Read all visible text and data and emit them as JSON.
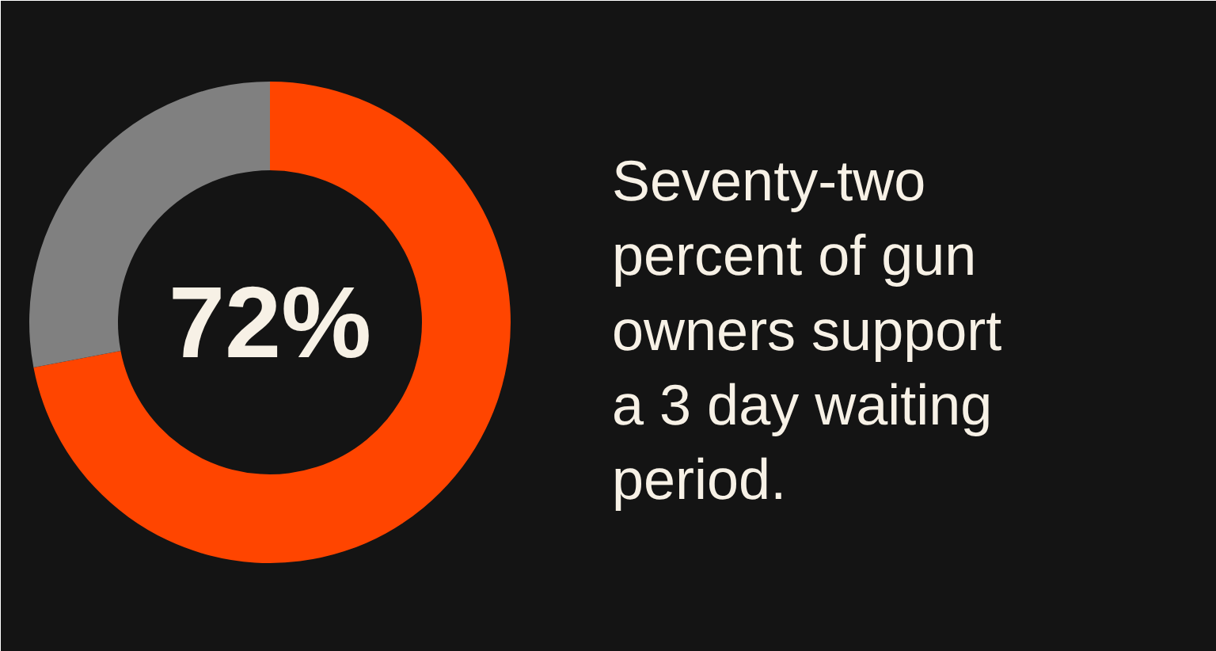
{
  "chart_data": {
    "type": "donut",
    "categories": [
      null,
      null
    ],
    "values": [
      72,
      28
    ],
    "colors": [
      "#ff4500",
      "#808080"
    ],
    "value_labels": [
      "72%",
      null
    ],
    "annotations": [
      "Seventy-two percent of gun owners support a 3 day waiting period."
    ]
  }
}
